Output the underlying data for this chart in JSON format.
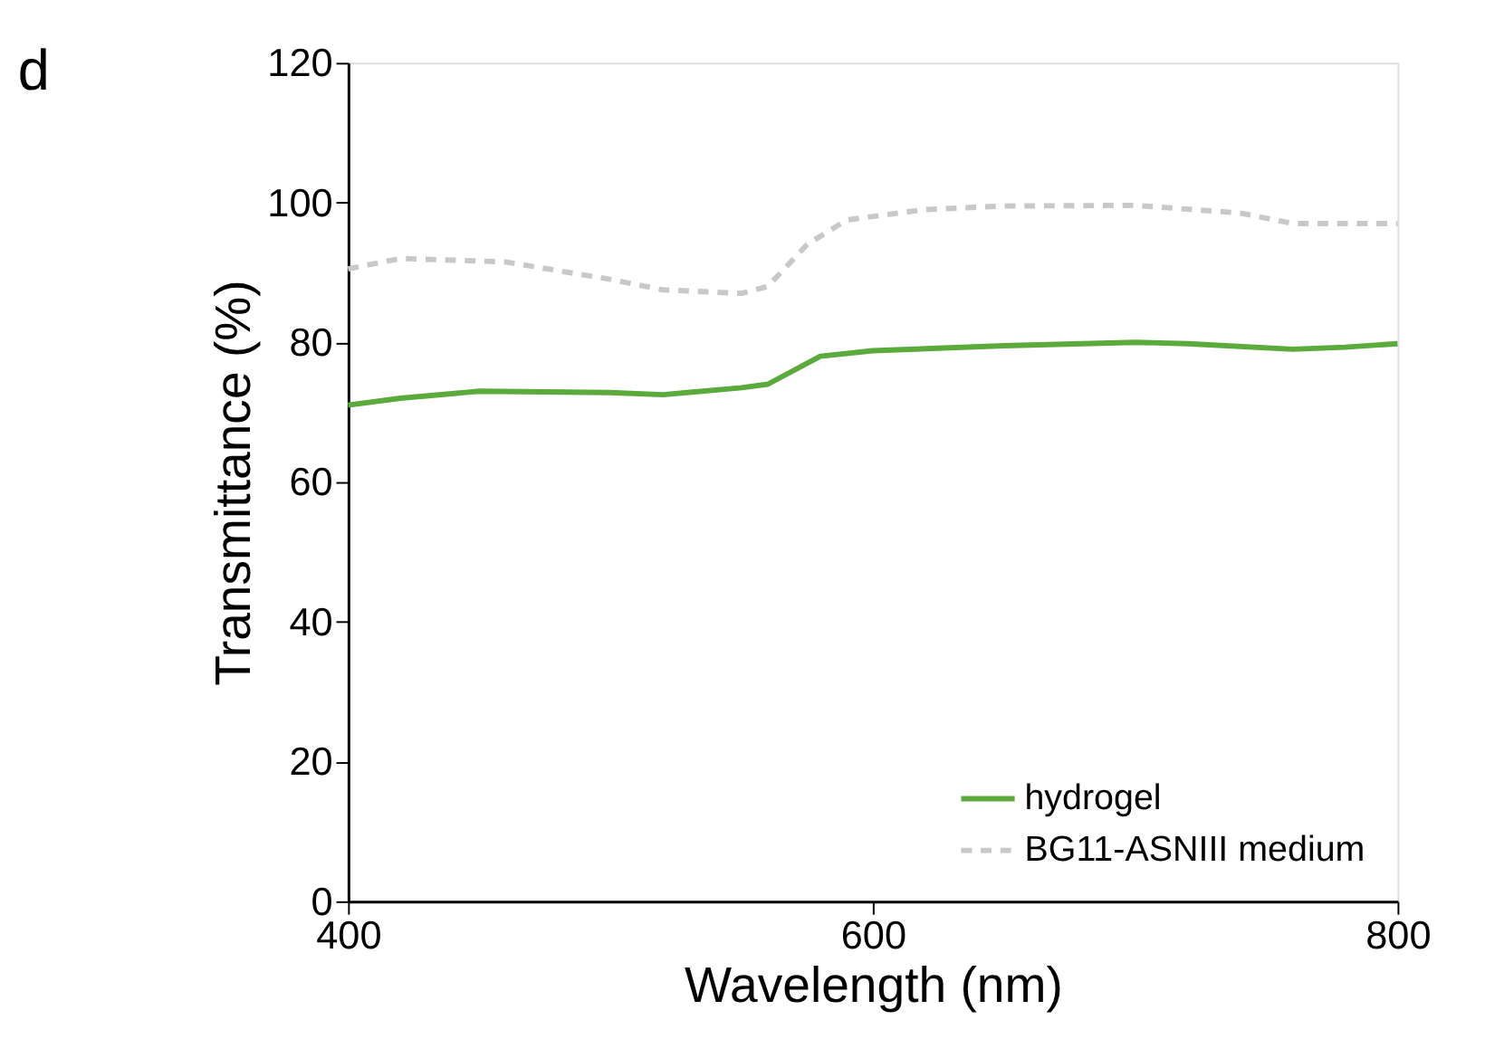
{
  "chart_data": {
    "type": "line",
    "xlabel": "Wavelength (nm)",
    "ylabel": "Transmittance (%)",
    "xlim": [
      400,
      800
    ],
    "xticks": [
      400,
      600,
      800
    ],
    "ylim": [
      0,
      120
    ],
    "yticks": [
      0,
      20,
      40,
      60,
      80,
      100,
      120
    ],
    "grid": false,
    "legend": "bottom right",
    "marker": "none",
    "annotations": [
      "d"
    ],
    "series": [
      {
        "name": "hydrogel",
        "color": "#5aaa3c",
        "line_style": "solid",
        "x": [
          400,
          420,
          450,
          500,
          520,
          550,
          560,
          580,
          600,
          650,
          700,
          720,
          760,
          780,
          800
        ],
        "values": [
          71,
          72,
          73,
          72.8,
          72.5,
          73.5,
          74,
          78,
          78.8,
          79.5,
          80,
          79.8,
          79,
          79.3,
          79.8
        ]
      },
      {
        "name": "BG11-ASNIII medium",
        "color": "#c8c8c8",
        "line_style": "dashed",
        "x": [
          400,
          420,
          460,
          500,
          520,
          550,
          560,
          575,
          590,
          620,
          650,
          700,
          740,
          760,
          800
        ],
        "values": [
          90.5,
          92,
          91.5,
          89,
          87.5,
          87,
          88,
          94,
          97.5,
          99,
          99.5,
          99.6,
          98.5,
          97,
          97
        ]
      }
    ]
  }
}
